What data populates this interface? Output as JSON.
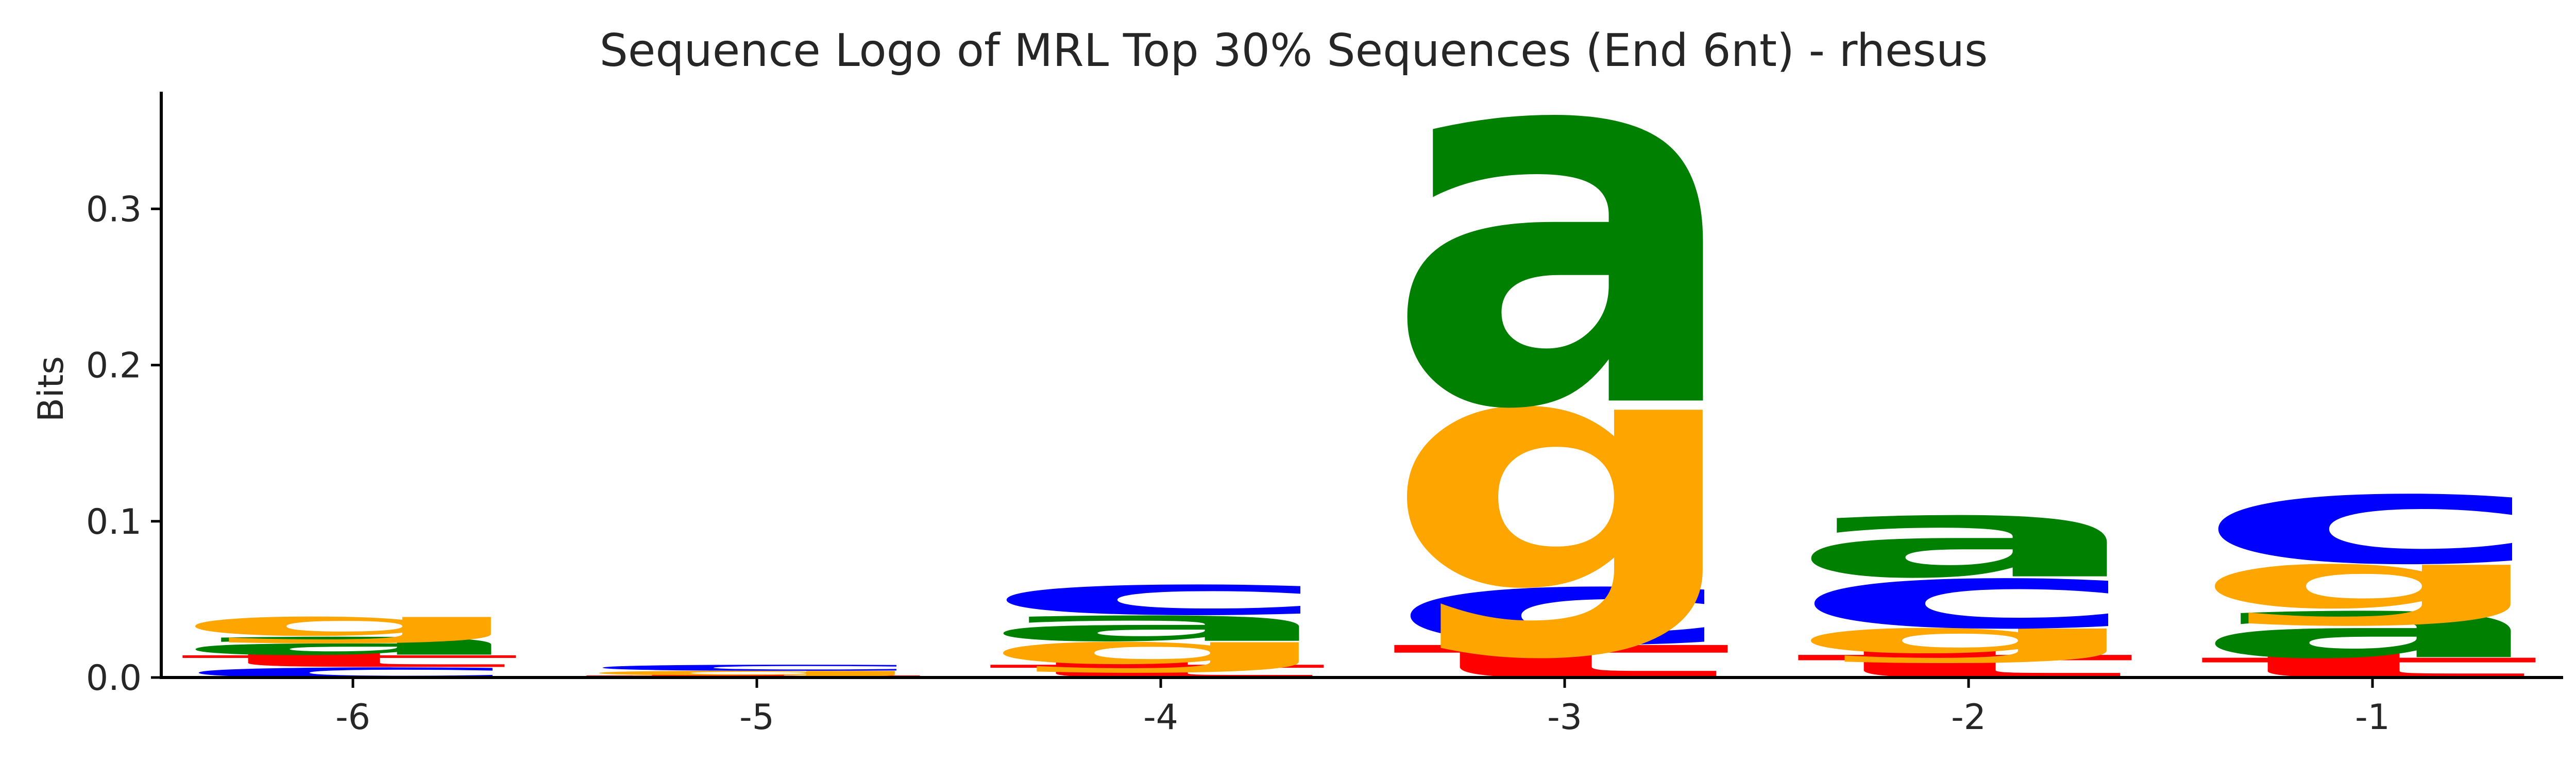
{
  "chart_data": {
    "type": "sequence-logo",
    "title": "Sequence Logo of MRL Top 30% Sequences (End 6nt) - rhesus",
    "xlabel": "",
    "ylabel": "Bits",
    "ylim": [
      0,
      0.375
    ],
    "yticks": [
      0.0,
      0.1,
      0.2,
      0.3
    ],
    "ytick_labels": [
      "0.0",
      "0.1",
      "0.2",
      "0.3"
    ],
    "grid": false,
    "colors": {
      "a": "#008000",
      "c": "#0000ff",
      "g": "#ffa500",
      "t": "#ff0000"
    },
    "positions": [
      {
        "label": "-6",
        "stack": [
          {
            "letter": "c",
            "value": 0.007
          },
          {
            "letter": "t",
            "value": 0.008
          },
          {
            "letter": "a",
            "value": 0.012
          },
          {
            "letter": "g",
            "value": 0.013
          }
        ]
      },
      {
        "label": "-5",
        "stack": [
          {
            "letter": "t",
            "value": 0.0015
          },
          {
            "letter": "g",
            "value": 0.003
          },
          {
            "letter": "c",
            "value": 0.004
          }
        ]
      },
      {
        "label": "-4",
        "stack": [
          {
            "letter": "t",
            "value": 0.009
          },
          {
            "letter": "g",
            "value": 0.015
          },
          {
            "letter": "a",
            "value": 0.017
          },
          {
            "letter": "c",
            "value": 0.02
          }
        ]
      },
      {
        "label": "-3",
        "stack": [
          {
            "letter": "t",
            "value": 0.023
          },
          {
            "letter": "c",
            "value": 0.038
          },
          {
            "letter": "g",
            "value": 0.122
          },
          {
            "letter": "a",
            "value": 0.191
          }
        ]
      },
      {
        "label": "-2",
        "stack": [
          {
            "letter": "t",
            "value": 0.016
          },
          {
            "letter": "g",
            "value": 0.017
          },
          {
            "letter": "c",
            "value": 0.033
          },
          {
            "letter": "a",
            "value": 0.041
          }
        ]
      },
      {
        "label": "-1",
        "stack": [
          {
            "letter": "t",
            "value": 0.014
          },
          {
            "letter": "a",
            "value": 0.031
          },
          {
            "letter": "g",
            "value": 0.03
          },
          {
            "letter": "c",
            "value": 0.046
          }
        ]
      }
    ]
  }
}
